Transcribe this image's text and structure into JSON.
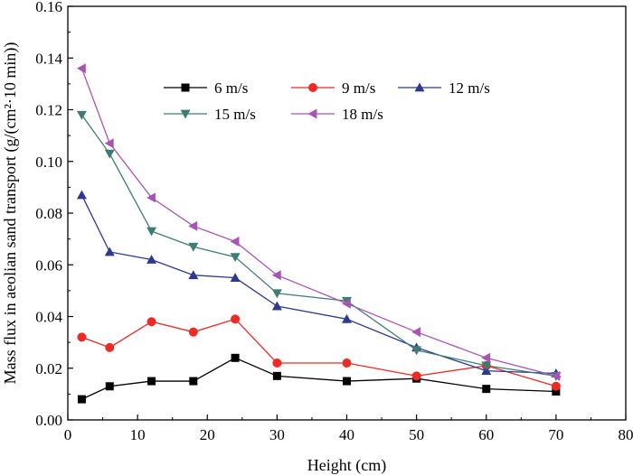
{
  "chart_data": {
    "type": "line",
    "title": "",
    "xlabel": "Height (cm)",
    "ylabel": "Mass flux in aeolian sand transport (g/(cm²·10 min))",
    "xlim": [
      0,
      80
    ],
    "ylim": [
      0,
      0.16
    ],
    "xticks": [
      "0",
      "10",
      "20",
      "30",
      "40",
      "50",
      "60",
      "70",
      "80"
    ],
    "yticks": [
      "0.00",
      "0.02",
      "0.04",
      "0.06",
      "0.08",
      "0.10",
      "0.12",
      "0.14",
      "0.16"
    ],
    "grid": false,
    "legend_position": "top",
    "x": [
      2,
      6,
      12,
      18,
      24,
      30,
      40,
      50,
      60,
      70
    ],
    "series": [
      {
        "name": "6 m/s",
        "color": "#000000",
        "marker": "square",
        "values": [
          0.008,
          0.013,
          0.015,
          0.015,
          0.024,
          0.017,
          0.015,
          0.016,
          0.012,
          0.011
        ]
      },
      {
        "name": "9 m/s",
        "color": "#ee2a24",
        "marker": "circle",
        "values": [
          0.032,
          0.028,
          0.038,
          0.034,
          0.039,
          0.022,
          0.022,
          0.017,
          0.021,
          0.013
        ]
      },
      {
        "name": "12 m/s",
        "color": "#2b3a8f",
        "marker": "triangle-up",
        "values": [
          0.087,
          0.065,
          0.062,
          0.056,
          0.055,
          0.044,
          0.039,
          0.028,
          0.019,
          0.018
        ]
      },
      {
        "name": "15 m/s",
        "color": "#3e7c75",
        "marker": "triangle-down",
        "values": [
          0.118,
          0.103,
          0.073,
          0.067,
          0.063,
          0.049,
          0.046,
          0.027,
          0.021,
          0.017
        ]
      },
      {
        "name": "18 m/s",
        "color": "#a854b4",
        "marker": "triangle-left",
        "values": [
          0.136,
          0.107,
          0.086,
          0.075,
          0.069,
          0.056,
          0.045,
          0.034,
          0.024,
          0.017
        ]
      }
    ]
  }
}
